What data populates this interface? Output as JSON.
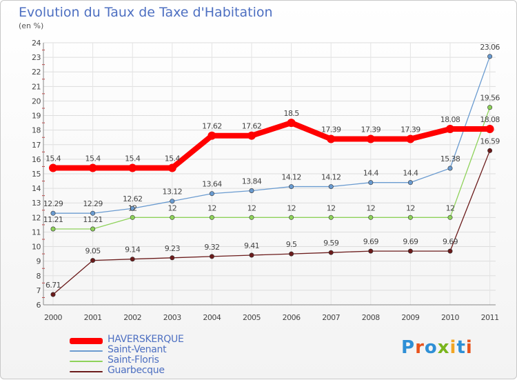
{
  "title": "Evolution du Taux de Taxe d'Habitation",
  "subtitle": "(en %)",
  "logo": {
    "text": "Proxiti",
    "colors": [
      "#2e8fd6",
      "#e8531c",
      "#2e8fd6",
      "#7ab51d",
      "#f2a623",
      "#2e8fd6",
      "#e8531c"
    ]
  },
  "chart_data": {
    "type": "line",
    "title": "Evolution du Taux de Taxe d'Habitation",
    "subtitle": "(en %)",
    "x": [
      "2000",
      "2001",
      "2002",
      "2003",
      "2004",
      "2005",
      "2006",
      "2007",
      "2008",
      "2009",
      "2010",
      "2011"
    ],
    "ylim": [
      6,
      24
    ],
    "yticks": [
      6,
      7,
      8,
      9,
      10,
      11,
      12,
      13,
      14,
      15,
      16,
      17,
      18,
      19,
      20,
      21,
      22,
      23,
      24
    ],
    "grid": true,
    "legend_position": "bottom-left",
    "series": [
      {
        "name": "HAVERSKERQUE",
        "color": "#ff0000",
        "values": [
          15.4,
          15.4,
          15.4,
          15.4,
          17.62,
          17.62,
          18.5,
          17.39,
          17.39,
          17.39,
          18.08,
          18.08
        ],
        "labels": [
          "15.4",
          "15.4",
          "15.4",
          "15.4",
          "17.62",
          "17.62",
          "18.5",
          "17.39",
          "17.39",
          "17.39",
          "18.08",
          "18.08"
        ]
      },
      {
        "name": "Saint-Venant",
        "color": "#6a9bd0",
        "values": [
          12.29,
          12.29,
          12.62,
          13.12,
          13.64,
          13.84,
          14.12,
          14.12,
          14.4,
          14.4,
          15.38,
          23.06
        ],
        "labels": [
          "12.29",
          "12.29",
          "12.62",
          "13.12",
          "13.64",
          "13.84",
          "14.12",
          "14.12",
          "14.4",
          "14.4",
          "15.38",
          "23.06"
        ]
      },
      {
        "name": "Saint-Floris",
        "color": "#8ed25a",
        "values": [
          11.21,
          11.21,
          12,
          12,
          12,
          12,
          12,
          12,
          12,
          12,
          12,
          19.56
        ],
        "labels": [
          "11.21",
          "11.21",
          "12",
          "12",
          "12",
          "12",
          "12",
          "12",
          "12",
          "12",
          "12",
          "19.56"
        ]
      },
      {
        "name": "Guarbecque",
        "color": "#6b1b1b",
        "values": [
          6.71,
          9.05,
          9.14,
          9.23,
          9.32,
          9.41,
          9.5,
          9.59,
          9.69,
          9.69,
          9.69,
          16.59
        ],
        "labels": [
          "6.71",
          "9.05",
          "9.14",
          "9.23",
          "9.32",
          "9.41",
          "9.5",
          "9.59",
          "9.69",
          "9.69",
          "9.69",
          "16.59"
        ]
      }
    ]
  }
}
